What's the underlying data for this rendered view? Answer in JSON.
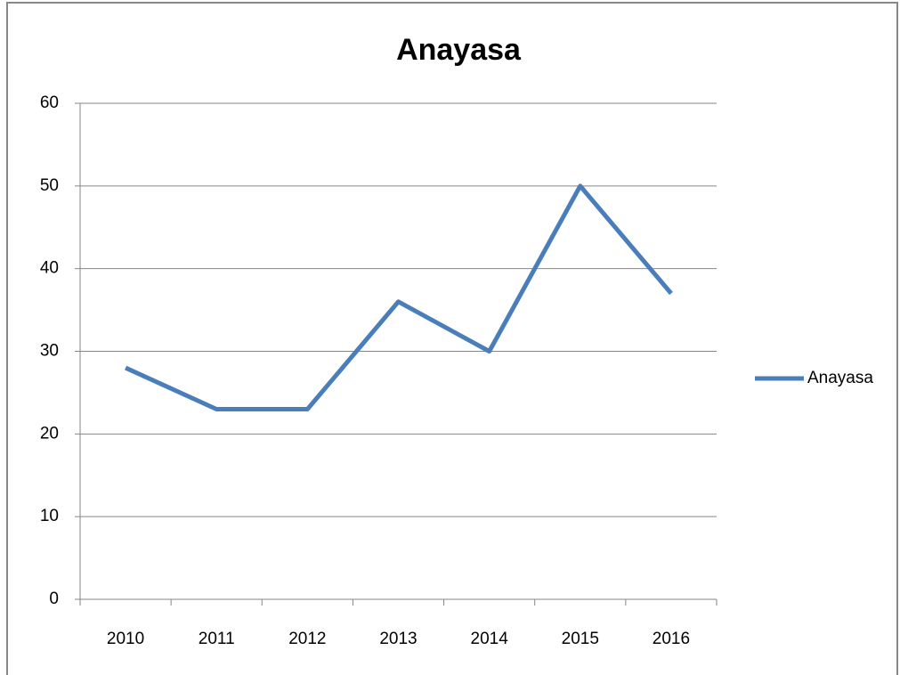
{
  "chart_data": {
    "type": "line",
    "title": "Anayasa",
    "categories": [
      "2010",
      "2011",
      "2012",
      "2013",
      "2014",
      "2015",
      "2016"
    ],
    "series": [
      {
        "name": "Anayasa",
        "color": "#4a7ebb",
        "values": [
          28,
          23,
          23,
          36,
          30,
          50,
          37
        ]
      }
    ],
    "ylim": [
      0,
      60
    ],
    "yticks": [
      0,
      10,
      20,
      30,
      40,
      50,
      60
    ],
    "grid": true,
    "legend": "right"
  }
}
